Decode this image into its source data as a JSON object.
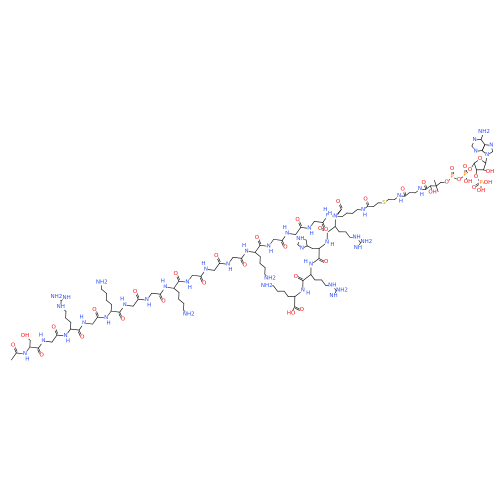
{
  "palette": {
    "oxygen": "#ff0d0d",
    "nitrogen": "#3050f8"
  },
  "upper_chain": {
    "cap": "O",
    "residues": [
      {
        "n": "N",
        "h": "H",
        "o": "O",
        "oh": "OH"
      },
      {
        "n": "N",
        "h": "H",
        "o": "O"
      },
      {
        "n": "N",
        "h": "H",
        "o": "O",
        "side": [
          "NH",
          "NH",
          "NH2"
        ]
      },
      {
        "n": "N",
        "h": "H",
        "o": "O"
      },
      {
        "n": "N",
        "h": "H",
        "o": "O",
        "side": [
          "NH2"
        ]
      },
      {
        "n": "N",
        "h": "H",
        "o": "O"
      },
      {
        "n": "N",
        "h": "H",
        "o": "O"
      },
      {
        "n": "N",
        "h": "H",
        "o": "O",
        "side": [
          "NH2"
        ]
      },
      {
        "n": "N",
        "h": "H",
        "o": "O"
      },
      {
        "n": "N",
        "h": "H",
        "o": "O"
      },
      {
        "n": "N",
        "h": "H",
        "o": "O"
      },
      {
        "n": "N",
        "h": "H",
        "o": "O",
        "side": [
          "NH2"
        ]
      },
      {
        "n": "N",
        "h": "H",
        "o": "O"
      },
      {
        "n": "N",
        "h": "H",
        "o": "O"
      },
      {
        "n": "N",
        "h": "H",
        "o": "O"
      },
      {
        "n": "N",
        "h": "H",
        "o": "O"
      }
    ]
  },
  "lower_chain": {
    "terminal": "HO",
    "residues": [
      {
        "n": "N",
        "h": "H",
        "o": "O",
        "side": [
          "NH",
          "NH",
          "NH2"
        ]
      },
      {
        "n": "N",
        "h": "H",
        "o": "O",
        "side": [
          "N",
          "NH"
        ]
      },
      {
        "n": "N",
        "h": "H",
        "o": "O",
        "side": [
          "NH",
          "NH",
          "NH2"
        ]
      },
      {
        "n": "N",
        "h": "H",
        "o": "O",
        "side": [
          "NH2"
        ]
      }
    ]
  },
  "coa": {
    "labels": [
      {
        "label": "N",
        "color": "#3050f8"
      },
      {
        "label": "H",
        "color": "#3050f8"
      },
      {
        "label": "O",
        "color": "#ff0d0d"
      },
      {
        "label": "S",
        "color": "#c8a800"
      },
      {
        "label": "N",
        "color": "#3050f8"
      },
      {
        "label": "H",
        "color": "#3050f8"
      },
      {
        "label": "O",
        "color": "#ff0d0d"
      },
      {
        "label": "N",
        "color": "#3050f8"
      },
      {
        "label": "H",
        "color": "#3050f8"
      },
      {
        "label": "O",
        "color": "#ff0d0d"
      },
      {
        "label": "OH",
        "color": "#ff0d0d"
      },
      {
        "label": "O",
        "color": "#ff0d0d"
      },
      {
        "label": "P",
        "color": "#ff8000"
      },
      {
        "label": "O",
        "color": "#ff0d0d"
      },
      {
        "label": "O",
        "color": "#ff0d0d"
      },
      {
        "label": "P",
        "color": "#ff8000"
      },
      {
        "label": "O",
        "color": "#ff0d0d"
      },
      {
        "label": "OH",
        "color": "#ff0d0d"
      },
      {
        "label": "O",
        "color": "#ff0d0d"
      },
      {
        "label": "O",
        "color": "#ff0d0d"
      },
      {
        "label": "O",
        "color": "#ff0d0d"
      },
      {
        "label": "P",
        "color": "#ff8000"
      },
      {
        "label": "OH",
        "color": "#ff0d0d"
      },
      {
        "label": "OH",
        "color": "#ff0d0d"
      },
      {
        "label": "O",
        "color": "#ff0d0d"
      },
      {
        "label": "OH",
        "color": "#ff0d0d"
      },
      {
        "label": "N",
        "color": "#3050f8"
      },
      {
        "label": "N",
        "color": "#3050f8"
      },
      {
        "label": "N",
        "color": "#3050f8"
      },
      {
        "label": "N",
        "color": "#3050f8"
      },
      {
        "label": "NH2",
        "color": "#3050f8"
      }
    ]
  }
}
